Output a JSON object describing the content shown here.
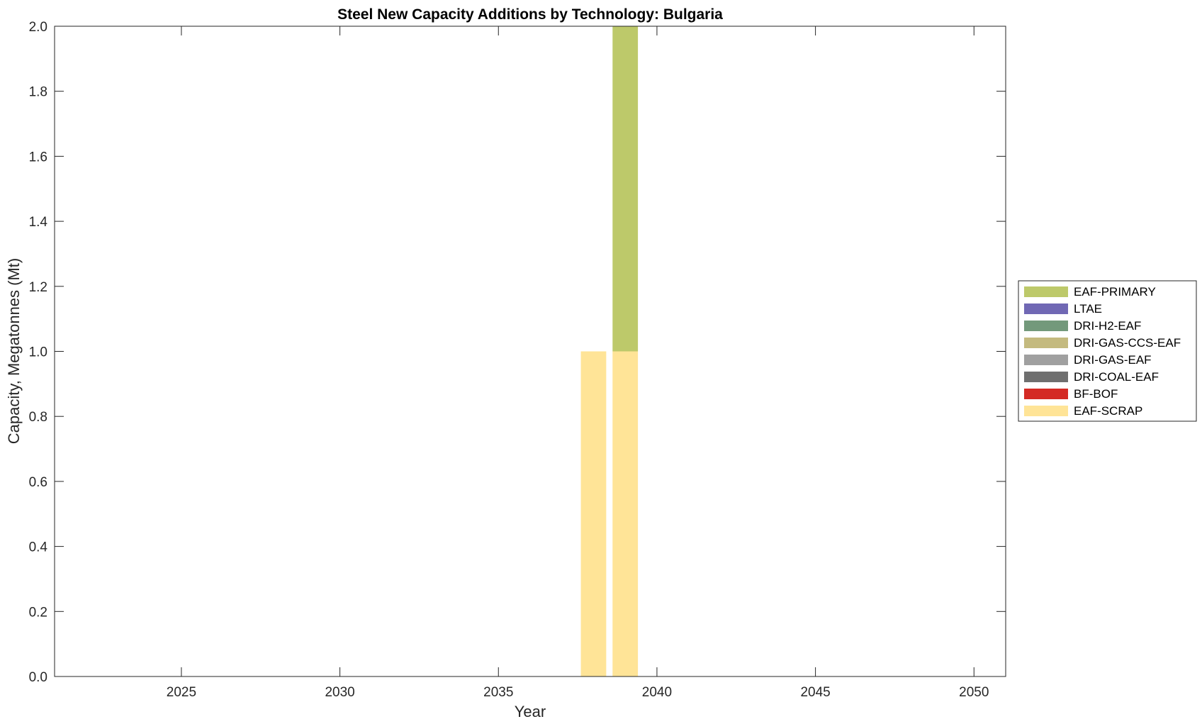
{
  "chart_data": {
    "type": "bar",
    "stacked": true,
    "title": "Steel New Capacity Additions by Technology: Bulgaria",
    "xlabel": "Year",
    "ylabel": "Capacity, Megatonnes (Mt)",
    "xlim": [
      2021,
      2051
    ],
    "ylim": [
      0,
      2
    ],
    "x_ticks": [
      2025,
      2030,
      2035,
      2040,
      2045,
      2050
    ],
    "y_ticks": [
      "0.0",
      "0.2",
      "0.4",
      "0.6",
      "0.8",
      "1.0",
      "1.2",
      "1.4",
      "1.6",
      "1.8",
      "2.0"
    ],
    "grid": false,
    "legend_position": "outside-right",
    "x": [
      2038,
      2039
    ],
    "series": [
      {
        "name": "EAF-SCRAP",
        "color": "#FFE497",
        "values": [
          1,
          1
        ]
      },
      {
        "name": "BF-BOF",
        "color": "#D42A24",
        "values": [
          0,
          0
        ]
      },
      {
        "name": "DRI-COAL-EAF",
        "color": "#6F6F6F",
        "values": [
          0,
          0
        ]
      },
      {
        "name": "DRI-GAS-EAF",
        "color": "#A0A0A0",
        "values": [
          0,
          0
        ]
      },
      {
        "name": "DRI-GAS-CCS-EAF",
        "color": "#C4BA7F",
        "values": [
          0,
          0
        ]
      },
      {
        "name": "DRI-H2-EAF",
        "color": "#73997B",
        "values": [
          0,
          0
        ]
      },
      {
        "name": "LTAE",
        "color": "#7068B4",
        "values": [
          0,
          0
        ]
      },
      {
        "name": "EAF-PRIMARY",
        "color": "#BDC96A",
        "values": [
          0,
          1
        ]
      }
    ],
    "legend_order": [
      "EAF-PRIMARY",
      "LTAE",
      "DRI-H2-EAF",
      "DRI-GAS-CCS-EAF",
      "DRI-GAS-EAF",
      "DRI-COAL-EAF",
      "BF-BOF",
      "EAF-SCRAP"
    ]
  }
}
